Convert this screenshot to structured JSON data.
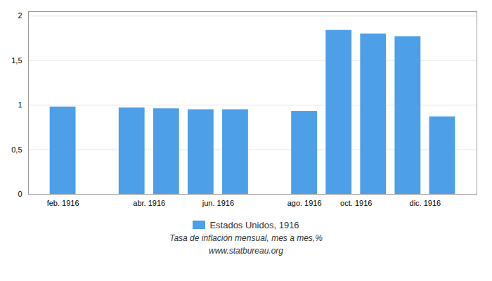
{
  "chart_data": {
    "type": "bar",
    "subtitle": "Tasa de inflación mensual, mes a mes,%",
    "annotations": [
      "www.statbureau.org"
    ],
    "x": [
      1,
      3,
      4,
      5,
      6,
      8,
      9,
      10,
      11,
      12
    ],
    "series": [
      {
        "name": "Estados Unidos, 1916",
        "color": "#4d9fe8",
        "values": [
          0.98,
          0.97,
          0.96,
          0.95,
          0.95,
          0.93,
          1.84,
          1.8,
          1.77,
          0.87
        ]
      }
    ],
    "xlim": [
      0,
      13
    ],
    "xticks": [
      {
        "value": 1,
        "label": "feb. 1916"
      },
      {
        "value": 3.5,
        "label": "abr. 1916"
      },
      {
        "value": 5.5,
        "label": "jun. 1916"
      },
      {
        "value": 8,
        "label": "ago. 1916"
      },
      {
        "value": 9.5,
        "label": "oct. 1916"
      },
      {
        "value": 11.5,
        "label": "dic. 1916"
      }
    ],
    "ylim": [
      0,
      2.05
    ],
    "yticks": [
      0,
      {
        "value": 0.5,
        "label": "0,5"
      },
      1,
      {
        "value": 1.5,
        "label": "1,5"
      },
      2
    ],
    "grid": true,
    "legend": "bottom"
  }
}
